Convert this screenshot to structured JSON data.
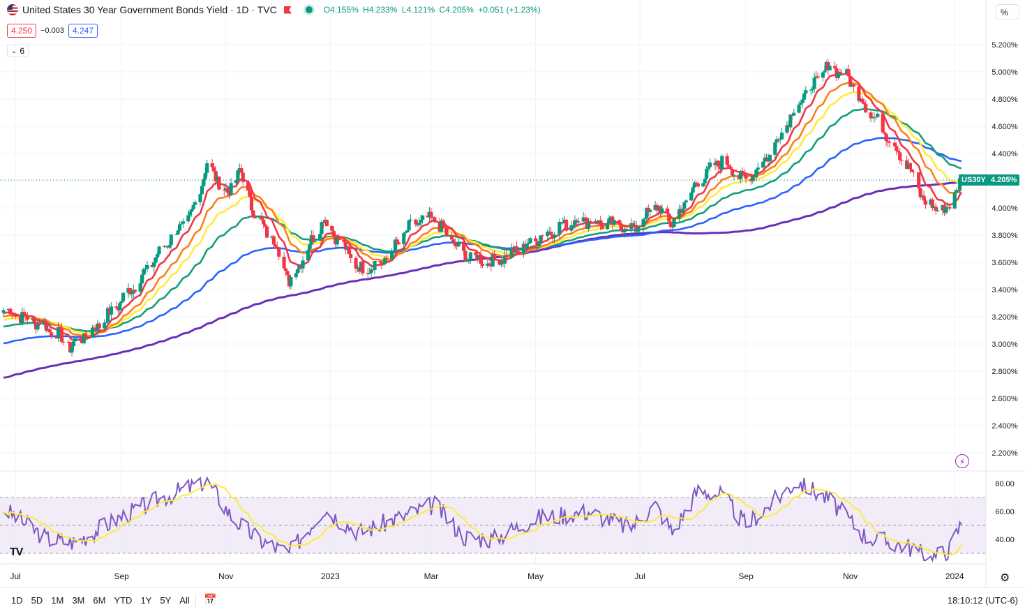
{
  "header": {
    "title": "United States 30 Year Government Bonds Yield · 1D · TVC",
    "ohlc": {
      "open": "O4.155%",
      "high": "H4.233%",
      "low": "L4.121%",
      "close": "C4.205%",
      "change": "+0.051 (+1.23%)"
    },
    "sell_price": "4.250",
    "spread": "−0.003",
    "buy_price": "4.247",
    "indicator_count": "6",
    "scale_unit": "%",
    "icons": [
      "us-flag-icon",
      "flag-icon",
      "market-status-icon",
      "chevron-down-icon"
    ]
  },
  "price_tags": {
    "symbol": "US30Y",
    "last": "4.205%"
  },
  "bottom_bar": {
    "ranges": [
      "1D",
      "5D",
      "1M",
      "3M",
      "6M",
      "YTD",
      "1Y",
      "5Y",
      "All"
    ],
    "clock": "18:10:12 (UTC-6)",
    "icons": [
      "calendar-range-icon",
      "settings-gear-icon"
    ]
  },
  "logo": "TV",
  "colors": {
    "up": "#089981",
    "down": "#f23645",
    "ma_red": "#f23645",
    "ma_orange": "#ff7f1a",
    "ma_yellow": "#ffeb3b",
    "ma_green": "#129e7c",
    "ma_blue": "#2962ff",
    "ma_purple": "#6a2fb6",
    "rsi_line": "#7e57c2",
    "rsi_ma": "#ffeb3b",
    "rsi_band": "#ede7f6"
  },
  "chart_data": [
    {
      "type": "candlestick",
      "title": "",
      "x_ticks": [
        "Jul",
        "Sep",
        "Nov",
        "2023",
        "Mar",
        "May",
        "Jul",
        "Sep",
        "Nov",
        "2024"
      ],
      "y_ticks": [
        "5.200%",
        "5.000%",
        "4.800%",
        "4.600%",
        "4.400%",
        "4.200%",
        "4.000%",
        "3.800%",
        "3.600%",
        "3.400%",
        "3.200%",
        "3.000%",
        "2.800%",
        "2.600%",
        "2.400%",
        "2.200%"
      ],
      "ylim": [
        2.1,
        5.35
      ],
      "x_range": [
        "2022-06-24",
        "2024-01-05"
      ],
      "close_anchors": [
        [
          "2022-06-24",
          3.25
        ],
        [
          "2022-07-10",
          3.18
        ],
        [
          "2022-07-25",
          3.08
        ],
        [
          "2022-08-02",
          2.98
        ],
        [
          "2022-08-15",
          3.1
        ],
        [
          "2022-08-25",
          3.22
        ],
        [
          "2022-09-10",
          3.45
        ],
        [
          "2022-09-28",
          3.75
        ],
        [
          "2022-10-12",
          3.95
        ],
        [
          "2022-10-21",
          4.32
        ],
        [
          "2022-11-02",
          4.1
        ],
        [
          "2022-11-09",
          4.28
        ],
        [
          "2022-11-18",
          3.95
        ],
        [
          "2022-12-01",
          3.72
        ],
        [
          "2022-12-08",
          3.45
        ],
        [
          "2022-12-28",
          3.92
        ],
        [
          "2023-01-18",
          3.55
        ],
        [
          "2023-02-01",
          3.6
        ],
        [
          "2023-02-18",
          3.88
        ],
        [
          "2023-03-03",
          3.92
        ],
        [
          "2023-03-20",
          3.65
        ],
        [
          "2023-04-06",
          3.6
        ],
        [
          "2023-04-25",
          3.72
        ],
        [
          "2023-05-12",
          3.85
        ],
        [
          "2023-05-26",
          3.92
        ],
        [
          "2023-06-12",
          3.88
        ],
        [
          "2023-06-28",
          3.85
        ],
        [
          "2023-07-10",
          4.02
        ],
        [
          "2023-07-20",
          3.88
        ],
        [
          "2023-08-04",
          4.2
        ],
        [
          "2023-08-18",
          4.35
        ],
        [
          "2023-09-01",
          4.2
        ],
        [
          "2023-09-15",
          4.4
        ],
        [
          "2023-09-28",
          4.7
        ],
        [
          "2023-10-10",
          4.9
        ],
        [
          "2023-10-20",
          5.05
        ],
        [
          "2023-10-31",
          4.95
        ],
        [
          "2023-11-10",
          4.75
        ],
        [
          "2023-11-22",
          4.55
        ],
        [
          "2023-12-05",
          4.3
        ],
        [
          "2023-12-15",
          4.03
        ],
        [
          "2023-12-27",
          3.98
        ],
        [
          "2024-01-05",
          4.205
        ]
      ],
      "last": 4.205,
      "moving_averages": [
        "red",
        "orange",
        "yellow",
        "green",
        "blue",
        "purple"
      ]
    },
    {
      "type": "line",
      "title": "",
      "y_ticks": [
        "80.00",
        "60.00",
        "40.00"
      ],
      "ylim": [
        25,
        85
      ],
      "band": [
        30,
        70
      ],
      "midline": 50,
      "rsi_anchors": [
        [
          "2022-06-24",
          62
        ],
        [
          "2022-07-20",
          40
        ],
        [
          "2022-08-05",
          38
        ],
        [
          "2022-08-30",
          55
        ],
        [
          "2022-09-25",
          70
        ],
        [
          "2022-10-21",
          82
        ],
        [
          "2022-11-05",
          55
        ],
        [
          "2022-11-20",
          40
        ],
        [
          "2022-12-08",
          30
        ],
        [
          "2022-12-28",
          62
        ],
        [
          "2023-01-18",
          45
        ],
        [
          "2023-02-20",
          60
        ],
        [
          "2023-03-03",
          65
        ],
        [
          "2023-03-20",
          42
        ],
        [
          "2023-04-06",
          40
        ],
        [
          "2023-05-01",
          55
        ],
        [
          "2023-06-01",
          60
        ],
        [
          "2023-06-25",
          48
        ],
        [
          "2023-07-10",
          65
        ],
        [
          "2023-07-20",
          45
        ],
        [
          "2023-08-04",
          75
        ],
        [
          "2023-08-18",
          72
        ],
        [
          "2023-09-01",
          50
        ],
        [
          "2023-10-01",
          82
        ],
        [
          "2023-10-20",
          68
        ],
        [
          "2023-11-10",
          42
        ],
        [
          "2023-12-05",
          35
        ],
        [
          "2023-12-18",
          26
        ],
        [
          "2023-12-29",
          33
        ],
        [
          "2024-01-05",
          52
        ]
      ]
    }
  ]
}
